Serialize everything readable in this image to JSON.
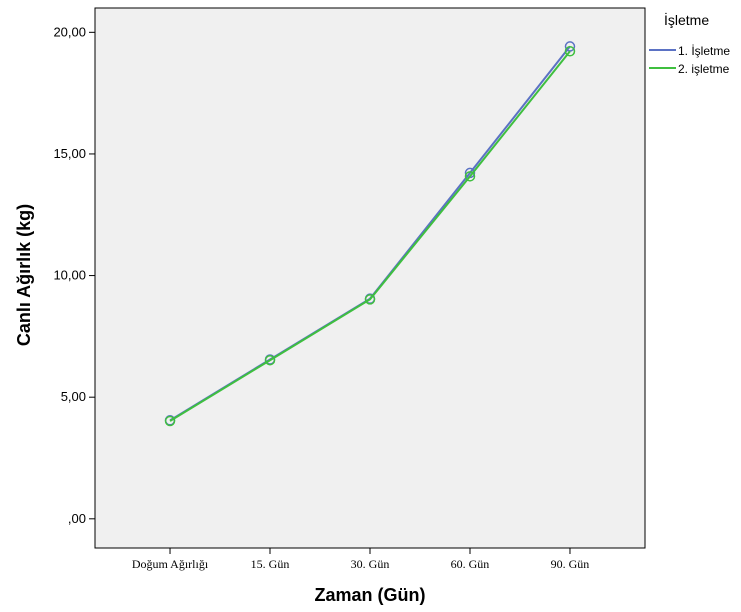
{
  "chart_data": {
    "type": "line",
    "xlabel": "Zaman (Gün)",
    "ylabel": "Canlı Ağırlık (kg)",
    "categories": [
      "Doğum Ağırlığı",
      "15. Gün",
      "30. Gün",
      "60. Gün",
      "90. Gün"
    ],
    "yticks": [
      "20,00",
      "15,00",
      "10,00",
      "5,00",
      ",00"
    ],
    "ylim": [
      -1.2,
      21.0
    ],
    "legend_title": "İşletme",
    "legend_position": "right",
    "grid": false,
    "plot_background": "#f0f0f0",
    "series": [
      {
        "name": "1. İşletme",
        "color": "#5b72c4",
        "values": [
          4.05,
          6.55,
          9.05,
          14.22,
          19.42
        ]
      },
      {
        "name": "2. işletme",
        "color": "#3fbf3f",
        "values": [
          4.02,
          6.52,
          9.02,
          14.08,
          19.22
        ]
      }
    ]
  }
}
